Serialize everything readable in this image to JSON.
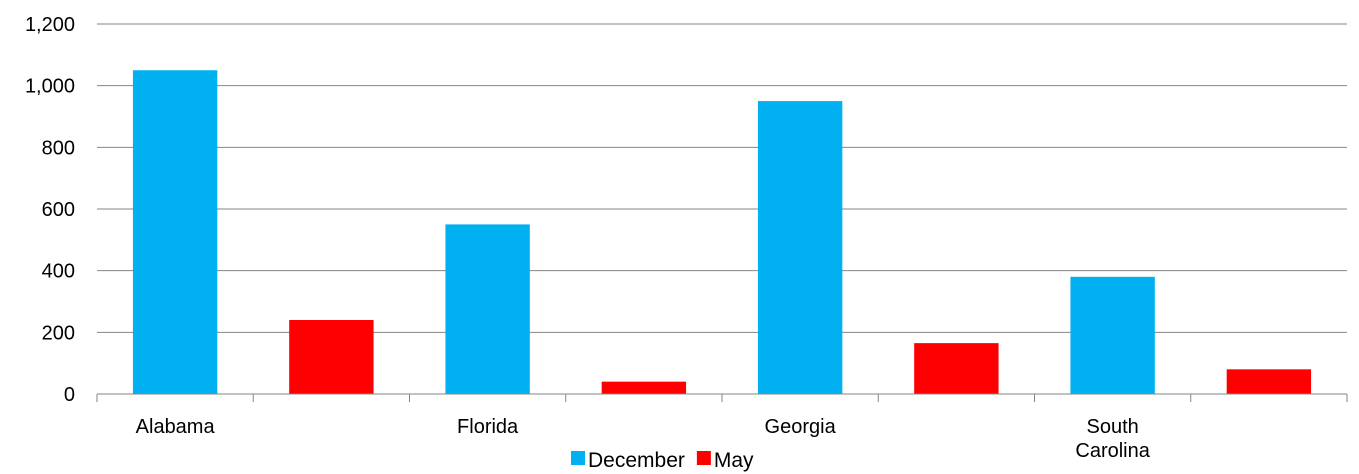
{
  "chart_data": {
    "type": "bar",
    "categories": [
      "Alabama",
      "Florida",
      "Georgia",
      "South Carolina"
    ],
    "category_label_lines": [
      [
        "Alabama"
      ],
      [
        "Florida"
      ],
      [
        "Georgia"
      ],
      [
        "South",
        "Carolina"
      ]
    ],
    "series": [
      {
        "name": "December",
        "color": "#00B0F0",
        "values": [
          1050,
          550,
          950,
          380
        ]
      },
      {
        "name": "May",
        "color": "#FF0000",
        "values": [
          240,
          40,
          165,
          80
        ]
      }
    ],
    "ylim": [
      0,
      1200
    ],
    "yticks": [
      0,
      200,
      400,
      600,
      800,
      1000,
      1200
    ],
    "ytick_labels": [
      "0",
      "200",
      "400",
      "600",
      "800",
      "1,000",
      "1,200"
    ],
    "grid": true,
    "legend_position": "bottom",
    "title": "",
    "xlabel": "",
    "ylabel": ""
  }
}
